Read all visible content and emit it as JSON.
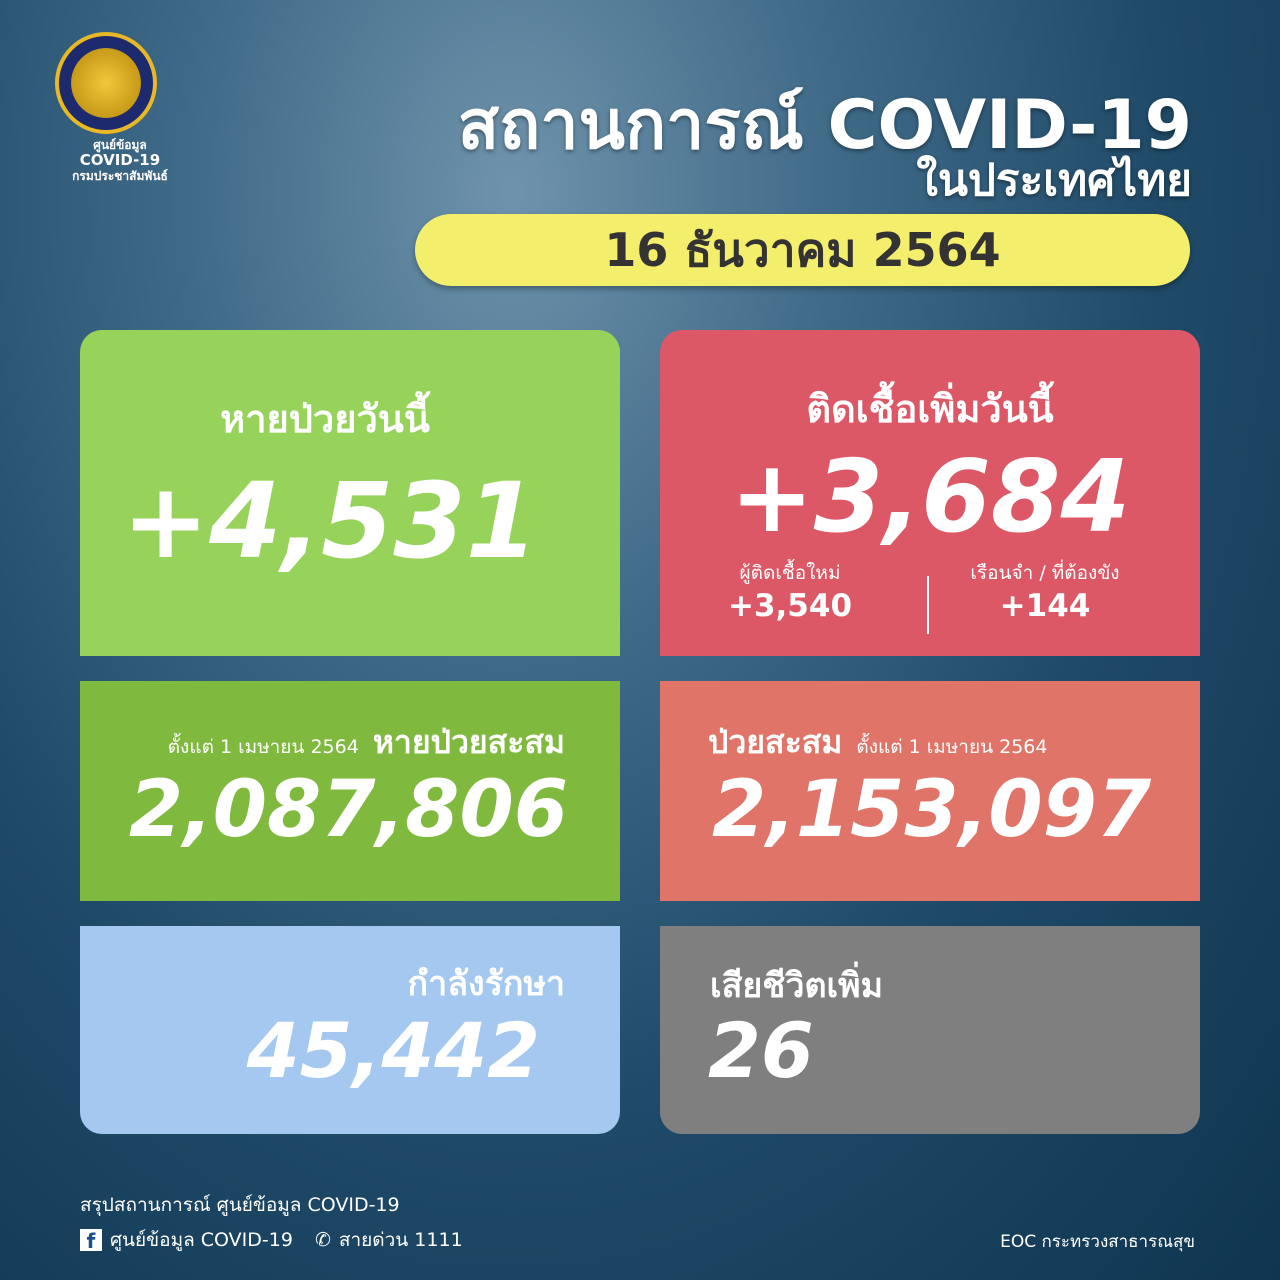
{
  "logo": {
    "line1": "ศูนย์ข้อมูล",
    "line2": "COVID-19",
    "line3": "กรมประชาสัมพันธ์"
  },
  "header": {
    "title": "สถานการณ์ COVID-19",
    "subtitle": "ในประเทศไทย",
    "date": "16 ธันวาคม 2564"
  },
  "recovered_today": {
    "label": "หายป่วยวันนี้",
    "value": "+4,531",
    "color": "#97d35a"
  },
  "new_cases": {
    "label": "ติดเชื้อเพิ่มวันนี้",
    "value": "+3,684",
    "color": "#dc5866",
    "breakdown": [
      {
        "label": "ผู้ติดเชื้อใหม่",
        "value": "+3,540"
      },
      {
        "label": "เรือนจำ / ที่ต้องขัง",
        "value": "+144"
      }
    ]
  },
  "recovered_total": {
    "since": "ตั้งแต่ 1 เมษายน 2564",
    "label": "หายป่วยสะสม",
    "value": "2,087,806",
    "color": "#7fba3f"
  },
  "cases_total": {
    "label": "ป่วยสะสม",
    "since": "ตั้งแต่ 1 เมษายน 2564",
    "value": "2,153,097",
    "color": "#e07468"
  },
  "in_treatment": {
    "label": "กำลังรักษา",
    "value": "45,442",
    "color": "#a4c8f0"
  },
  "deaths": {
    "label": "เสียชีวิตเพิ่ม",
    "value": "26",
    "color": "#7f7f7f"
  },
  "footer": {
    "summary": "สรุปสถานการณ์ ศูนย์ข้อมูล COVID-19",
    "facebook": "ศูนย์ข้อมูล COVID-19",
    "hotline": "สายด่วน 1111",
    "source": "EOC กระทรวงสาธารณสุข"
  }
}
